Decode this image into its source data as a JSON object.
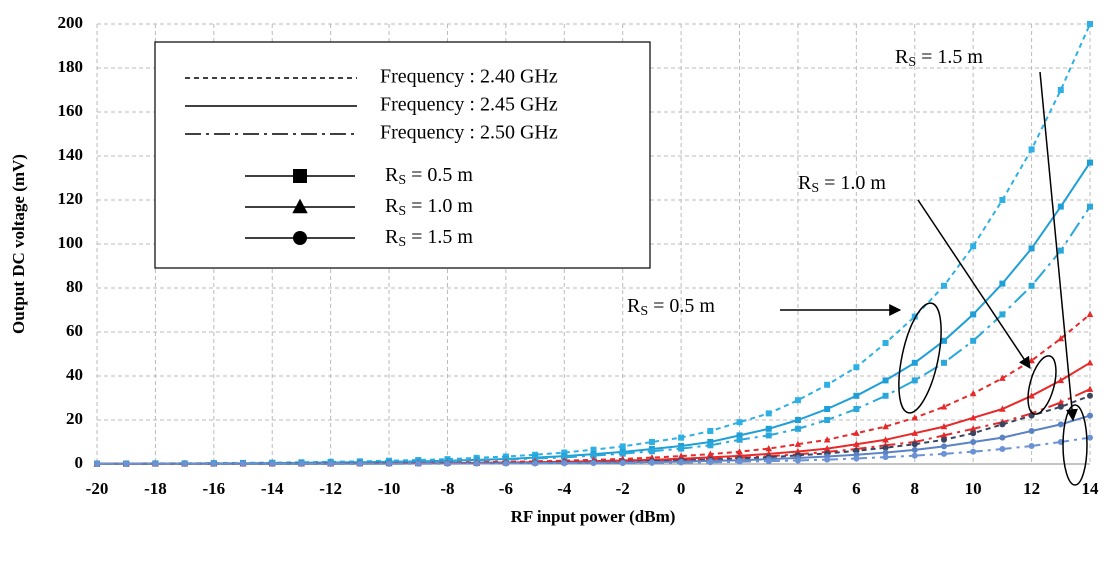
{
  "chart_data": {
    "type": "line",
    "y_label": "Output DC voltage (mV)",
    "x_label": "RF input power (dBm)",
    "x": [
      -20,
      -19,
      -18,
      -17,
      -16,
      -15,
      -14,
      -13,
      -12,
      -11,
      -10,
      -9,
      -8,
      -7,
      -6,
      -5,
      -4,
      -3,
      -2,
      -1,
      0,
      1,
      2,
      3,
      4,
      5,
      6,
      7,
      8,
      9,
      10,
      11,
      12,
      13,
      14
    ],
    "xlim": [
      -20,
      14
    ],
    "xticks": [
      -20,
      -18,
      -16,
      -14,
      -12,
      -10,
      -8,
      -6,
      -4,
      -2,
      0,
      2,
      4,
      6,
      8,
      10,
      12,
      14
    ],
    "ylim": [
      0,
      200
    ],
    "yticks": [
      0,
      20,
      40,
      60,
      80,
      100,
      120,
      140,
      160,
      180,
      200
    ],
    "grid": true,
    "series": [
      {
        "color": "#2eb0e4",
        "style": "dashed",
        "marker": "square",
        "values": [
          0.2,
          0.2,
          0.3,
          0.3,
          0.4,
          0.5,
          0.6,
          0.8,
          1.0,
          1.2,
          1.5,
          1.8,
          2.2,
          2.8,
          3.4,
          4.2,
          5.2,
          6.5,
          8,
          10,
          12,
          15,
          19,
          23,
          29,
          36,
          44,
          55,
          67,
          81,
          99,
          120,
          143,
          170,
          200
        ]
      },
      {
        "color": "#1e9fd8",
        "style": "solid",
        "marker": "square",
        "values": [
          0.1,
          0.2,
          0.2,
          0.2,
          0.3,
          0.3,
          0.4,
          0.5,
          0.7,
          0.8,
          1.0,
          1.2,
          1.5,
          1.9,
          2.3,
          2.9,
          3.6,
          4.5,
          5.5,
          6.8,
          8.2,
          10,
          13,
          16,
          20,
          25,
          31,
          38,
          46,
          56,
          68,
          82,
          98,
          117,
          137
        ]
      },
      {
        "color": "#2aa8dc",
        "style": "dashdot",
        "marker": "square",
        "values": [
          0.1,
          0.1,
          0.2,
          0.2,
          0.2,
          0.3,
          0.4,
          0.5,
          0.6,
          0.7,
          0.9,
          1.1,
          1.3,
          1.6,
          2.0,
          2.5,
          3.0,
          3.8,
          4.7,
          5.8,
          7,
          8.5,
          11,
          13,
          16,
          20,
          25,
          31,
          38,
          46,
          56,
          68,
          81,
          97,
          117
        ]
      },
      {
        "color": "#e8292a",
        "style": "dashed",
        "marker": "triangle",
        "values": [
          0.1,
          0.1,
          0.1,
          0.1,
          0.1,
          0.2,
          0.2,
          0.2,
          0.3,
          0.3,
          0.4,
          0.5,
          0.6,
          0.8,
          1.0,
          1.2,
          1.5,
          1.9,
          2.3,
          2.9,
          3.6,
          4.5,
          5.6,
          7,
          9,
          11,
          14,
          17,
          21,
          26,
          32,
          39,
          47,
          57,
          68
        ]
      },
      {
        "color": "#e8292a",
        "style": "solid",
        "marker": "triangle",
        "values": [
          0.1,
          0.1,
          0.1,
          0.1,
          0.1,
          0.1,
          0.1,
          0.2,
          0.2,
          0.2,
          0.3,
          0.3,
          0.4,
          0.5,
          0.7,
          0.8,
          1.0,
          1.3,
          1.6,
          1.9,
          2.4,
          3.0,
          3.7,
          4.6,
          5.7,
          7,
          9,
          11,
          14,
          17,
          21,
          25,
          31,
          38,
          46
        ]
      },
      {
        "color": "#e8292a",
        "style": "dashdot",
        "marker": "triangle",
        "values": [
          0.1,
          0.1,
          0.1,
          0.1,
          0.1,
          0.1,
          0.1,
          0.1,
          0.1,
          0.2,
          0.2,
          0.2,
          0.3,
          0.4,
          0.5,
          0.6,
          0.8,
          1.0,
          1.2,
          1.5,
          1.8,
          2.2,
          2.8,
          3.5,
          4.4,
          5.5,
          6.8,
          8.5,
          10,
          13,
          16,
          19,
          23,
          28,
          34
        ]
      },
      {
        "color": "#3a4660",
        "style": "dashed",
        "marker": "circle",
        "values": [
          0.1,
          0.1,
          0.1,
          0.1,
          0.1,
          0.1,
          0.1,
          0.1,
          0.1,
          0.2,
          0.2,
          0.2,
          0.3,
          0.3,
          0.4,
          0.5,
          0.7,
          0.8,
          1.0,
          1.3,
          1.6,
          2.0,
          2.5,
          3.1,
          3.9,
          4.8,
          6,
          7.4,
          9,
          11,
          14,
          18,
          22,
          26,
          31
        ]
      },
      {
        "color": "#5a82c4",
        "style": "solid",
        "marker": "circle",
        "values": [
          0.1,
          0.1,
          0.1,
          0.1,
          0.1,
          0.1,
          0.1,
          0.1,
          0.1,
          0.1,
          0.1,
          0.2,
          0.2,
          0.2,
          0.3,
          0.4,
          0.5,
          0.6,
          0.7,
          0.9,
          1.1,
          1.4,
          1.7,
          2.2,
          2.7,
          3.4,
          4.2,
          5.2,
          6.4,
          8,
          10,
          12,
          15,
          18,
          22
        ]
      },
      {
        "color": "#6a92d4",
        "style": "dashdot",
        "marker": "circle",
        "values": [
          0.1,
          0.1,
          0.1,
          0.1,
          0.1,
          0.1,
          0.1,
          0.1,
          0.1,
          0.1,
          0.1,
          0.1,
          0.1,
          0.2,
          0.2,
          0.2,
          0.3,
          0.4,
          0.4,
          0.5,
          0.7,
          0.8,
          1.0,
          1.3,
          1.6,
          2.0,
          2.5,
          3.1,
          3.8,
          4.6,
          5.6,
          6.8,
          8.2,
          10,
          12
        ]
      }
    ],
    "legend": {
      "styles": [
        "dashed",
        "solid",
        "dashdot"
      ],
      "frequencies": [
        "Frequency : 2.40 GHz",
        "Frequency : 2.45 GHz",
        "Frequency : 2.50 GHz"
      ],
      "markers": [
        "square",
        "triangle",
        "circle"
      ],
      "distances": [
        [
          "R",
          "S",
          " = 0.5 m"
        ],
        [
          "R",
          "S",
          " = 1.0 m"
        ],
        [
          "R",
          "S",
          " = 1.5 m"
        ]
      ]
    },
    "annotations": [
      [
        "R",
        "S",
        " = 1.5 m"
      ],
      [
        "R",
        "S",
        " = 1.0 m"
      ],
      [
        "R",
        "S",
        " = 0.5 m"
      ]
    ]
  }
}
